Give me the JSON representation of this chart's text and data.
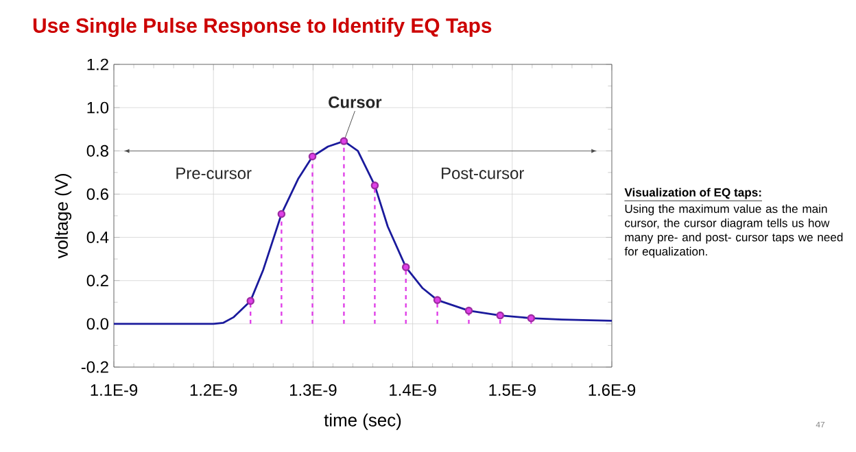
{
  "chart_data": {
    "type": "line",
    "title": "Use Single Pulse Response to Identify EQ Taps",
    "xlabel": "time (sec)",
    "ylabel": "voltage (V)",
    "xlim": [
      1.1e-09,
      1.6e-09
    ],
    "xticks": [
      {
        "value": 1.1e-09,
        "label": "1.1E-9"
      },
      {
        "value": 1.2e-09,
        "label": "1.2E-9"
      },
      {
        "value": 1.3e-09,
        "label": "1.3E-9"
      },
      {
        "value": 1.4e-09,
        "label": "1.4E-9"
      },
      {
        "value": 1.5e-09,
        "label": "1.5E-9"
      },
      {
        "value": 1.6e-09,
        "label": "1.6E-9"
      }
    ],
    "ylim": [
      -0.2,
      1.2
    ],
    "yticks": [
      {
        "value": -0.2,
        "label": "-0.2"
      },
      {
        "value": 0,
        "label": "0.0"
      },
      {
        "value": 0.2,
        "label": "0.2"
      },
      {
        "value": 0.4,
        "label": "0.4"
      },
      {
        "value": 0.6,
        "label": "0.6"
      },
      {
        "value": 0.8,
        "label": "0.8"
      },
      {
        "value": 1.0,
        "label": "1.0"
      },
      {
        "value": 1.2,
        "label": "1.2"
      }
    ],
    "grid": true,
    "series": [
      {
        "color": "#1a1a9c",
        "line_style": "solid",
        "marker": "none",
        "x": [
          1.1e-09,
          1.15e-09,
          1.2e-09,
          1.21e-09,
          1.22e-09,
          1.2372e-09,
          1.25e-09,
          1.2683e-09,
          1.285e-09,
          1.2994e-09,
          1.315e-09,
          1.331e-09,
          1.345e-09,
          1.362e-09,
          1.375e-09,
          1.3932e-09,
          1.41e-09,
          1.4248e-09,
          1.4564e-09,
          1.4879e-09,
          1.519e-09,
          1.55e-09,
          1.6e-09
        ],
        "values": [
          0,
          0,
          0,
          0.005,
          0.03,
          0.106,
          0.25,
          0.508,
          0.67,
          0.774,
          0.82,
          0.845,
          0.8,
          0.64,
          0.45,
          0.262,
          0.165,
          0.11,
          0.061,
          0.039,
          0.026,
          0.02,
          0.014
        ]
      },
      {
        "type": "lollipop",
        "color": "#e040e8",
        "line_style": "dashed",
        "marker": "circle",
        "x": [
          1.2372e-09,
          1.2683e-09,
          1.2994e-09,
          1.331e-09,
          1.362e-09,
          1.3932e-09,
          1.4248e-09,
          1.4564e-09,
          1.4879e-09,
          1.519e-09
        ],
        "values": [
          0.106,
          0.508,
          0.774,
          0.845,
          0.64,
          0.262,
          0.11,
          0.061,
          0.039,
          0.026
        ]
      }
    ],
    "annotations": [
      {
        "text": "**Cursor**",
        "x": 1.331e-09,
        "y": 0.845
      },
      "Pre-cursor",
      "Post-cursor",
      "Visualization of EQ taps:",
      "Using the maximum value as the main cursor, the cursor diagram tells us how many pre- and post- cursor taps we need for equalization.",
      "47"
    ]
  }
}
